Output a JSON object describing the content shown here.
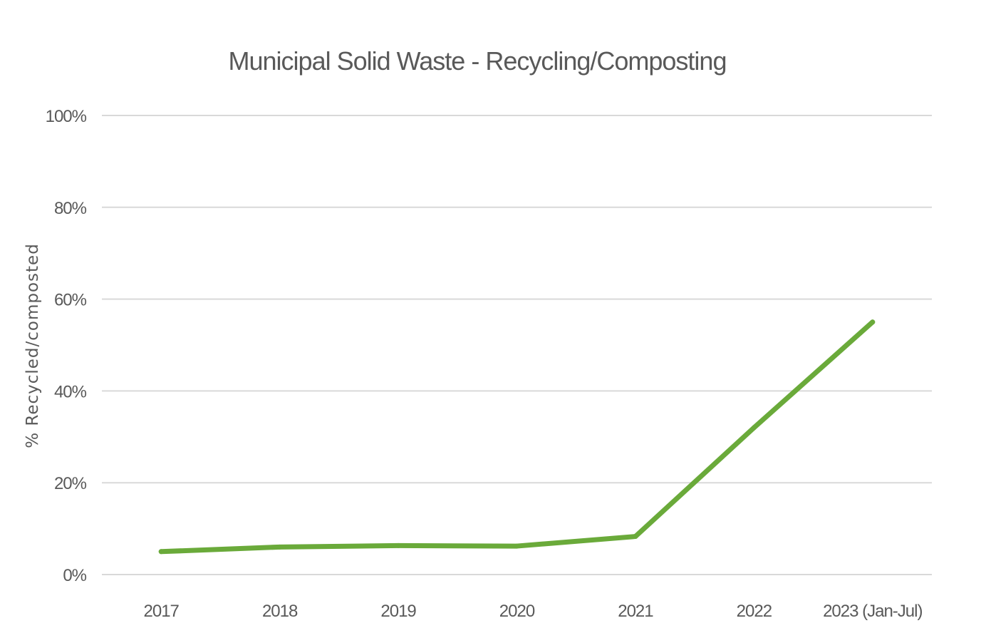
{
  "chart_data": {
    "type": "line",
    "title": "Municipal Solid Waste - Recycling/Composting",
    "xlabel": "",
    "ylabel": "% Recycled/composted",
    "categories": [
      "2017",
      "2018",
      "2019",
      "2020",
      "2021",
      "2022",
      "2023 (Jan-Jul)"
    ],
    "series": [
      {
        "values": [
          5,
          6,
          6.3,
          6.2,
          8.3,
          32,
          55
        ],
        "color": "#6aaa3a"
      }
    ],
    "ylim": [
      0,
      100
    ],
    "yticks": [
      0,
      20,
      40,
      60,
      80,
      100
    ],
    "ytick_labels": [
      "0%",
      "20%",
      "40%",
      "60%",
      "80%",
      "100%"
    ],
    "grid": true,
    "legend": "none"
  }
}
